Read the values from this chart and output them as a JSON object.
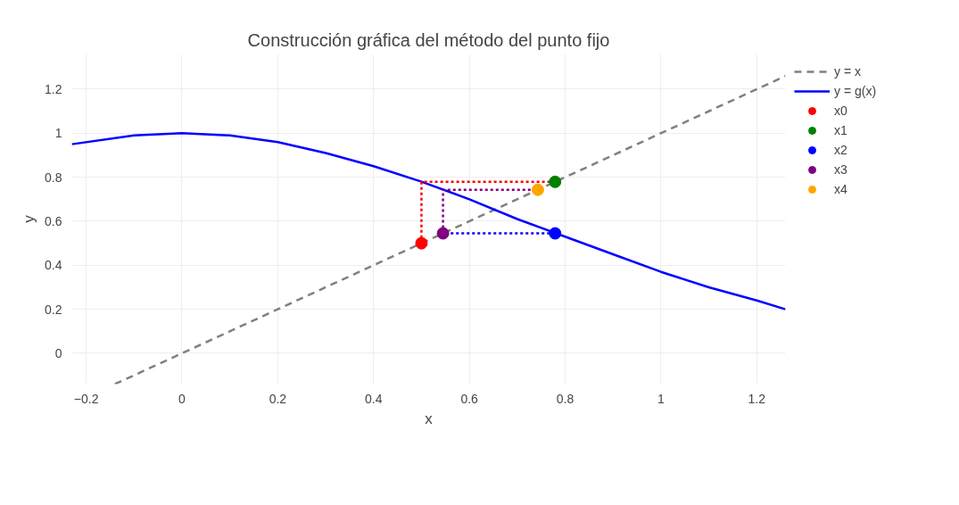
{
  "chart_data": {
    "type": "line",
    "title": "Construcción gráfica del método del punto fijo",
    "xlabel": "x",
    "ylabel": "y",
    "xlim": [
      -0.23,
      1.26
    ],
    "ylim": [
      -0.14,
      1.36
    ],
    "xticks": [
      -0.2,
      0,
      0.2,
      0.4,
      0.6,
      0.8,
      1,
      1.2
    ],
    "yticks": [
      0,
      0.2,
      0.4,
      0.6,
      0.8,
      1,
      1.2
    ],
    "grid": true,
    "legend": "top right",
    "series": [
      {
        "name": "y = x",
        "line_style": "dashed",
        "color": "#808080",
        "x": [
          -0.14,
          1.26
        ],
        "values": [
          -0.14,
          1.26
        ]
      },
      {
        "name": "y = g(x)",
        "line_style": "solid",
        "color": "#0000ff",
        "x": [
          -0.23,
          -0.1,
          0,
          0.1,
          0.2,
          0.3,
          0.4,
          0.5,
          0.6,
          0.7,
          0.8,
          0.9,
          1.0,
          1.1,
          1.2,
          1.26
        ],
        "values": [
          0.95,
          0.99,
          1,
          0.99,
          0.96,
          0.91,
          0.85,
          0.78,
          0.7,
          0.61,
          0.53,
          0.45,
          0.37,
          0.3,
          0.24,
          0.2
        ]
      },
      {
        "line_style": "dotted",
        "color": "#ff0000",
        "x": [
          0.5,
          0.5,
          0.779
        ],
        "values": [
          0.5,
          0.779,
          0.779
        ]
      },
      {
        "line_style": "dotted",
        "color": "#0000ff",
        "x": [
          0.779,
          0.545
        ],
        "values": [
          0.545,
          0.545
        ]
      },
      {
        "line_style": "dotted",
        "color": "#800080",
        "x": [
          0.545,
          0.545,
          0.743
        ],
        "values": [
          0.545,
          0.743,
          0.743
        ]
      },
      {
        "name": "x0",
        "type": "scatter",
        "marker": "circle",
        "color": "#ff0000",
        "x": [
          0.5
        ],
        "values": [
          0.5
        ]
      },
      {
        "name": "x1",
        "type": "scatter",
        "marker": "circle",
        "color": "#008000",
        "x": [
          0.779
        ],
        "values": [
          0.779
        ]
      },
      {
        "name": "x2",
        "type": "scatter",
        "marker": "circle",
        "color": "#0000ff",
        "x": [
          0.779
        ],
        "values": [
          0.545
        ]
      },
      {
        "name": "x3",
        "type": "scatter",
        "marker": "circle",
        "color": "#800080",
        "x": [
          0.545
        ],
        "values": [
          0.545
        ]
      },
      {
        "name": "x4",
        "type": "scatter",
        "marker": "circle",
        "color": "#ffa500",
        "x": [
          0.743
        ],
        "values": [
          0.743
        ]
      }
    ]
  }
}
